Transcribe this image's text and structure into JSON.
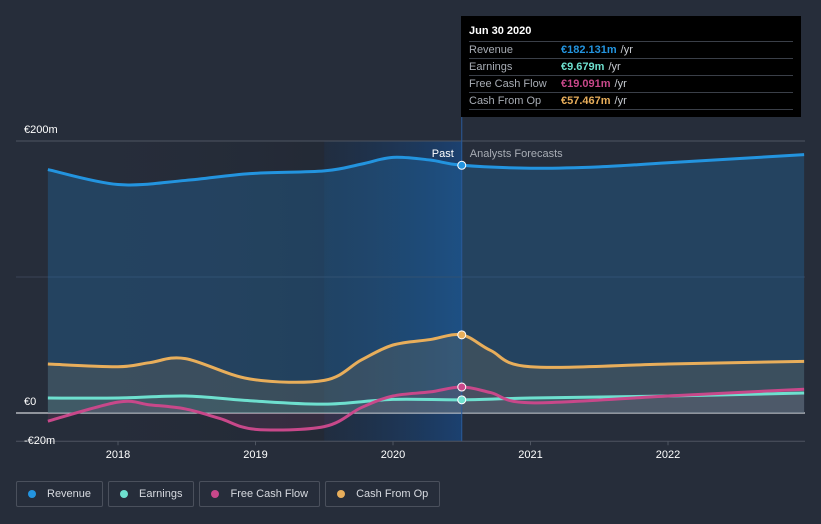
{
  "tooltip": {
    "date": "Jun 30 2020",
    "rows": [
      {
        "label": "Revenue",
        "value": "€182.131m",
        "unit": "/yr",
        "color": "#2394df"
      },
      {
        "label": "Earnings",
        "value": "€9.679m",
        "unit": "/yr",
        "color": "#6ee0cf"
      },
      {
        "label": "Free Cash Flow",
        "value": "€19.091m",
        "unit": "/yr",
        "color": "#c8488a"
      },
      {
        "label": "Cash From Op",
        "value": "€57.467m",
        "unit": "/yr",
        "color": "#e8ae5b"
      }
    ]
  },
  "chart_data": {
    "type": "area",
    "title": "",
    "xlabel": "",
    "ylabel": "",
    "xlim": [
      2017.49,
      2022.99
    ],
    "ylim": [
      -20,
      200
    ],
    "grid": true,
    "y_ticks": [
      {
        "value": 200,
        "label": "€200m"
      },
      {
        "value": 100,
        "label": ""
      },
      {
        "value": 0,
        "label": "€0"
      },
      {
        "value": -20,
        "label": "-€20m"
      }
    ],
    "x_ticks": [
      {
        "value": 2018,
        "label": "2018"
      },
      {
        "value": 2019,
        "label": "2019"
      },
      {
        "value": 2020,
        "label": "2020"
      },
      {
        "value": 2021,
        "label": "2021"
      },
      {
        "value": 2022,
        "label": "2022"
      }
    ],
    "past_label": "Past",
    "forecast_label": "Analysts Forecasts",
    "divider_x": 2020.5,
    "highlight_range": [
      2019.5,
      2020.5
    ],
    "legend_placement": "bottom-left",
    "series": [
      {
        "name": "Revenue",
        "color": "#2394df",
        "x": [
          2017.49,
          2018.0,
          2018.49,
          2018.96,
          2019.5,
          2019.77,
          2020.0,
          2020.27,
          2020.5,
          2021.0,
          2021.5,
          2022.0,
          2022.99
        ],
        "values": [
          179,
          168,
          171,
          176,
          178,
          183,
          188,
          186,
          182.131,
          180,
          181,
          184,
          190
        ]
      },
      {
        "name": "Earnings",
        "color": "#6ee0cf",
        "x": [
          2017.49,
          2018.0,
          2018.49,
          2018.96,
          2019.5,
          2020.0,
          2020.5,
          2021.0,
          2022.0,
          2022.99
        ],
        "values": [
          11,
          11,
          12.5,
          9,
          6.5,
          10,
          9.679,
          11,
          12.5,
          14.7
        ]
      },
      {
        "name": "Free Cash Flow",
        "color": "#c8488a",
        "x": [
          2017.49,
          2018.0,
          2018.23,
          2018.49,
          2018.74,
          2019.0,
          2019.5,
          2019.77,
          2020.0,
          2020.27,
          2020.5,
          2020.71,
          2021.0,
          2022.0,
          2022.99
        ],
        "values": [
          -6,
          8,
          6,
          3,
          -4,
          -12,
          -10,
          4,
          12.5,
          15.5,
          19.091,
          15,
          7.5,
          12.5,
          17.5
        ]
      },
      {
        "name": "Cash From Op",
        "color": "#e8ae5b",
        "x": [
          2017.49,
          2018.0,
          2018.23,
          2018.49,
          2018.96,
          2019.5,
          2019.77,
          2020.0,
          2020.27,
          2020.5,
          2020.71,
          2021.0,
          2022.0,
          2022.99
        ],
        "values": [
          36,
          34,
          37,
          40,
          25,
          24,
          39,
          50,
          54,
          57.467,
          46,
          34,
          36,
          38
        ]
      }
    ]
  },
  "legend": [
    {
      "label": "Revenue",
      "color": "#2394df"
    },
    {
      "label": "Earnings",
      "color": "#6ee0cf"
    },
    {
      "label": "Free Cash Flow",
      "color": "#c8488a"
    },
    {
      "label": "Cash From Op",
      "color": "#e8ae5b"
    }
  ]
}
